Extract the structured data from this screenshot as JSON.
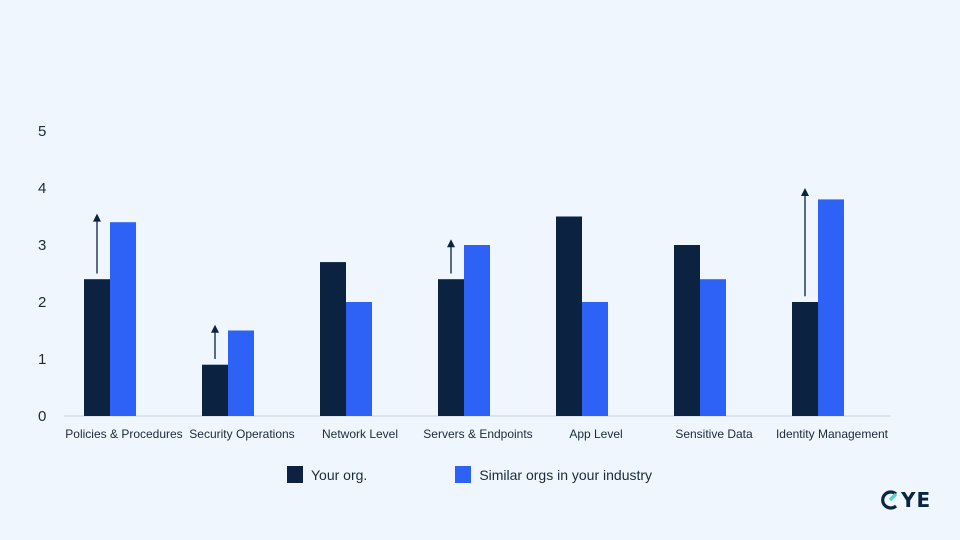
{
  "chart_data": {
    "type": "bar",
    "categories": [
      "Policies & Procedures",
      "Security Operations",
      "Network Level",
      "Servers & Endpoints",
      "App Level",
      "Sensitive Data",
      "Identity Management"
    ],
    "series": [
      {
        "name": "Your org.",
        "values": [
          2.4,
          0.9,
          2.7,
          2.4,
          3.5,
          3.0,
          2.0
        ]
      },
      {
        "name": "Similar orgs in your industry",
        "values": [
          3.4,
          1.5,
          2.0,
          3.0,
          2.0,
          2.4,
          3.8
        ]
      }
    ],
    "improvement_arrows": [
      {
        "category": "Policies & Procedures",
        "from": 2.5,
        "to": 3.55
      },
      {
        "category": "Security Operations",
        "from": 1.0,
        "to": 1.6
      },
      {
        "category": "Servers & Endpoints",
        "from": 2.5,
        "to": 3.1
      },
      {
        "category": "Identity Management",
        "from": 2.1,
        "to": 4.0
      }
    ],
    "yticks": [
      "0",
      "1",
      "2",
      "3",
      "4",
      "5"
    ],
    "ylim": [
      0,
      5
    ],
    "colors": {
      "your_org": "#0b2340",
      "similar_orgs": "#2e62f7",
      "arrow": "#0b2340",
      "axis": "#c9d3df"
    },
    "legend_position": "bottom"
  },
  "legend": {
    "your_org": "Your org.",
    "similar_orgs": "Similar orgs in your industry"
  },
  "logo": {
    "text": "YE"
  }
}
